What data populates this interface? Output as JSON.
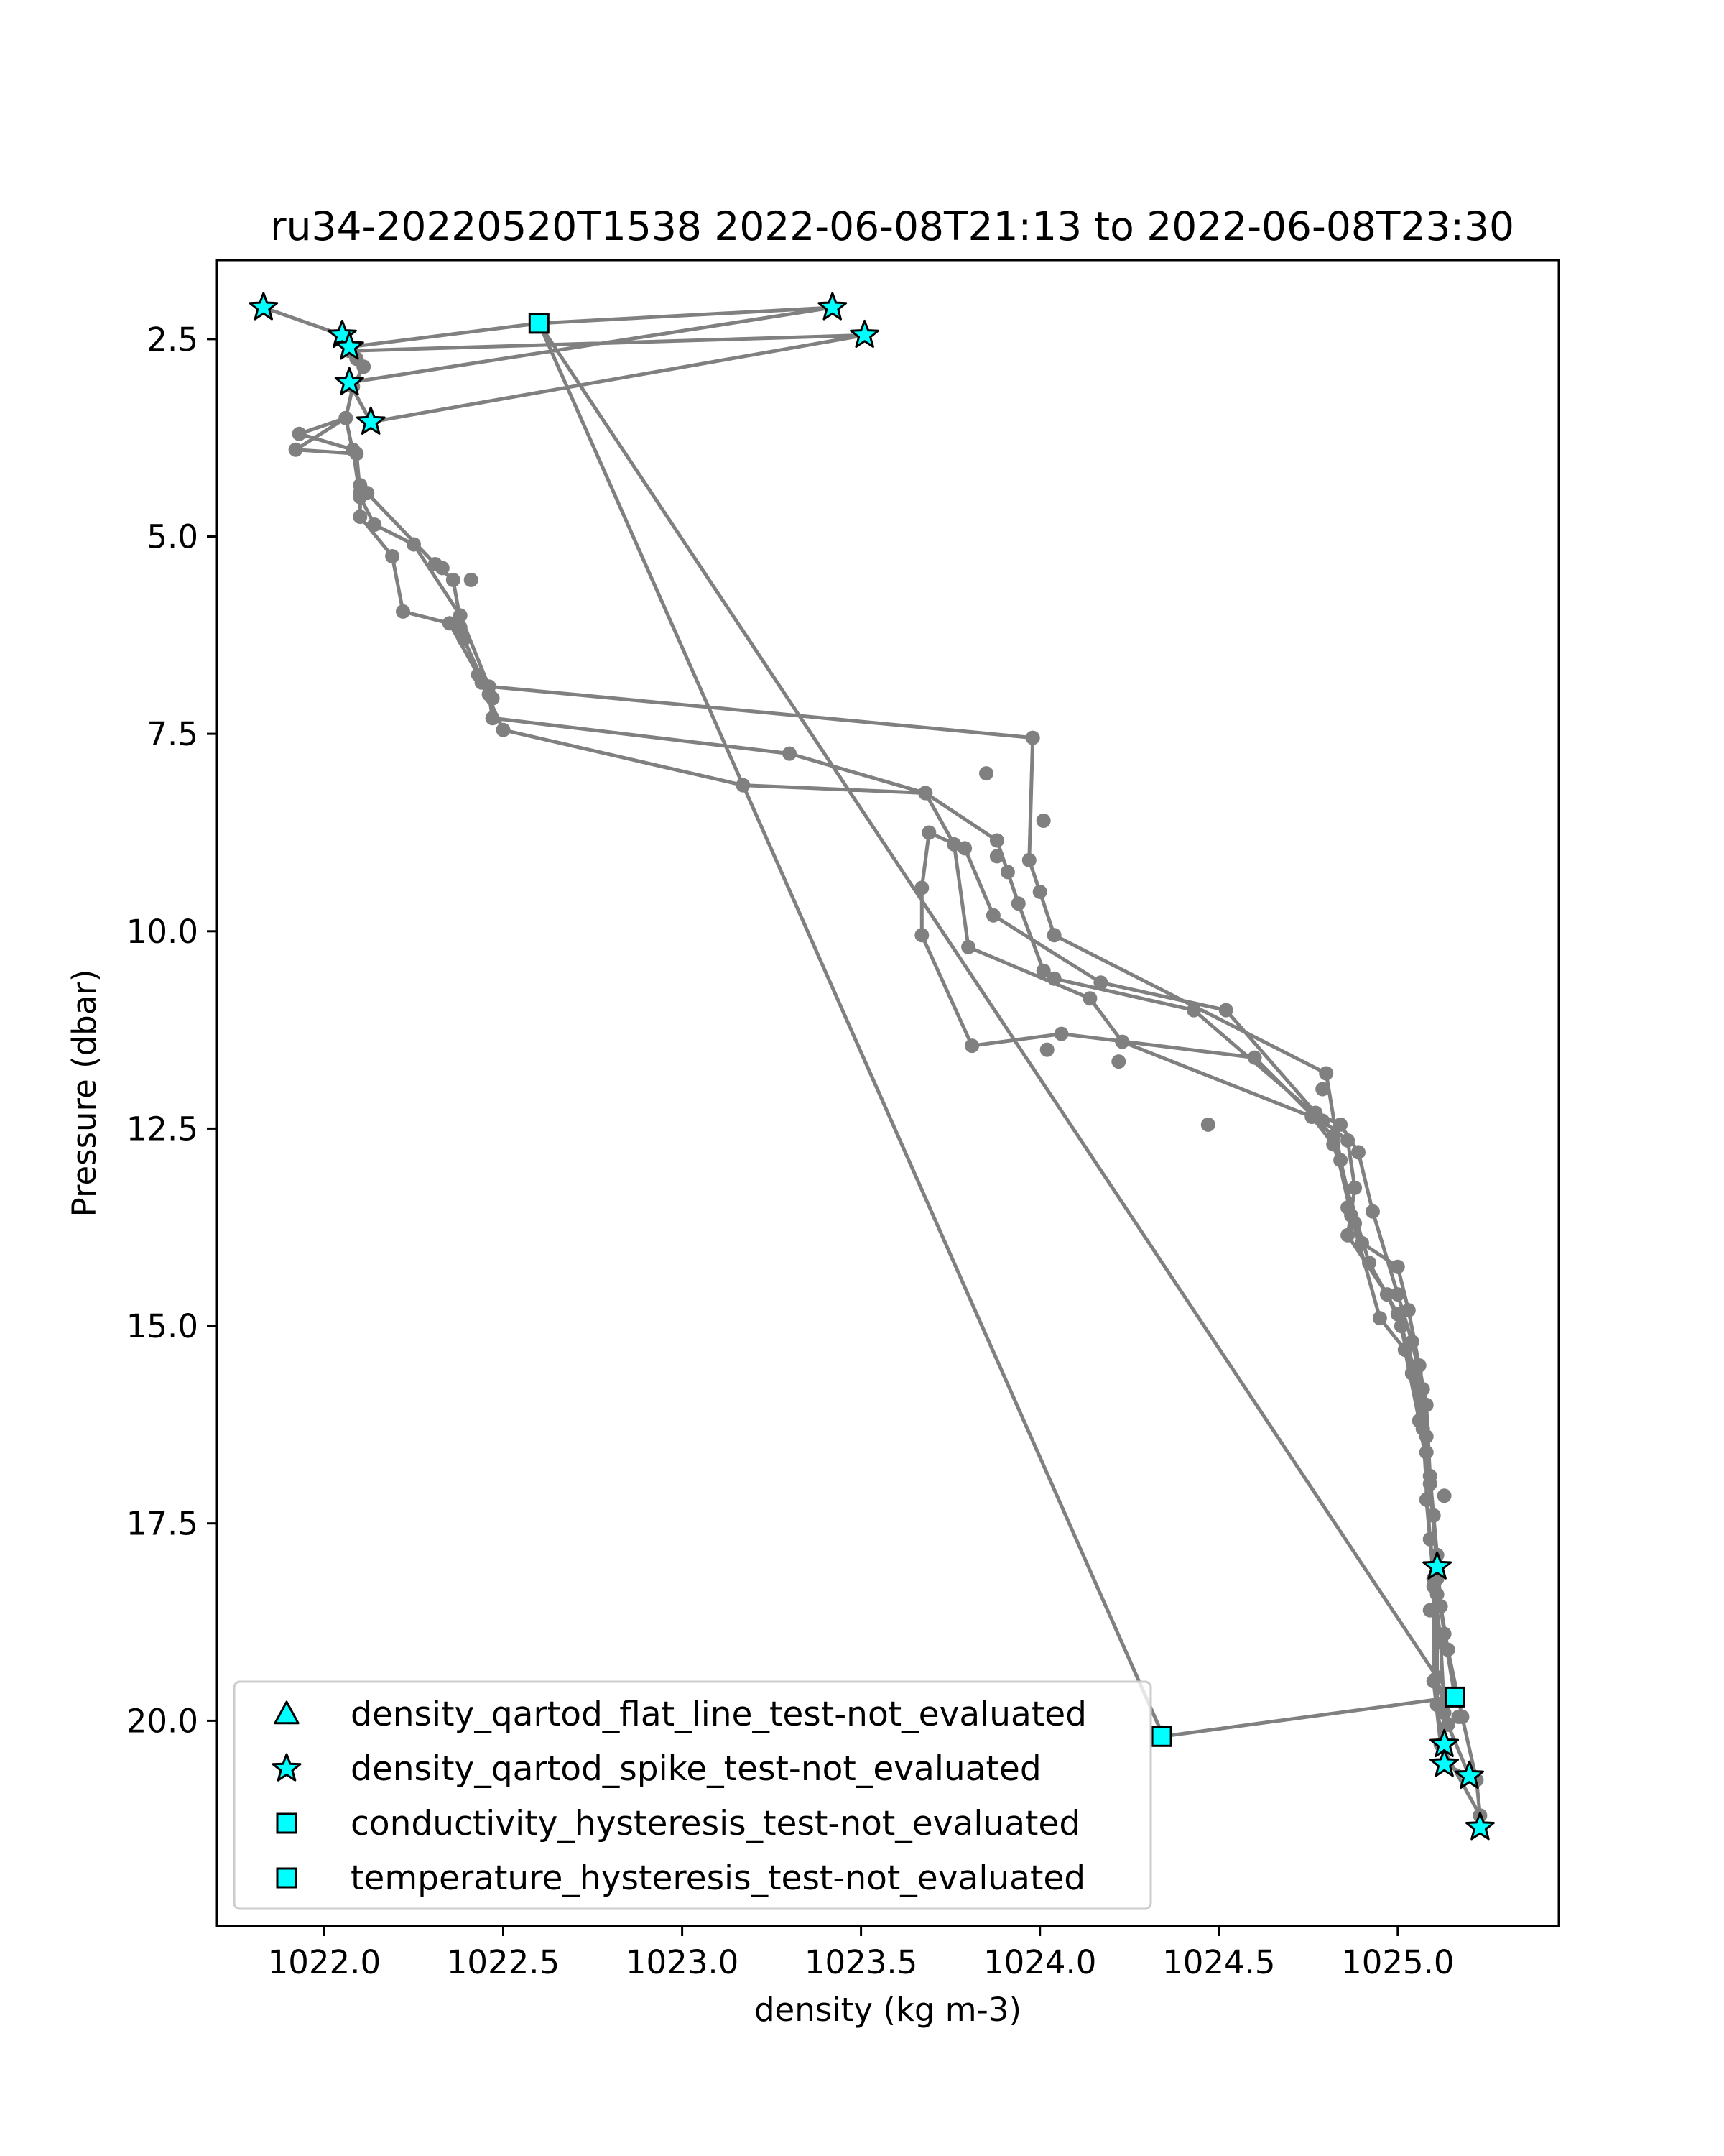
{
  "chart_data": {
    "type": "scatter",
    "title": "ru34-20220520T1538 2022-06-08T21:13 to 2022-06-08T23:30",
    "xlabel": "density (kg m-3)",
    "ylabel": "Pressure (dbar)",
    "xlim": [
      1021.7,
      1025.45
    ],
    "ylim": [
      22.6,
      1.5
    ],
    "y_inverted": true,
    "grid": false,
    "legend_position": "lower-left",
    "x_ticks": [
      1022.0,
      1022.5,
      1023.0,
      1023.5,
      1024.0,
      1024.5,
      1025.0
    ],
    "x_tick_labels": [
      "1022.0",
      "1022.5",
      "1023.0",
      "1023.5",
      "1024.0",
      "1024.5",
      "1025.0"
    ],
    "y_ticks": [
      2.5,
      5.0,
      7.5,
      10.0,
      12.5,
      15.0,
      17.5,
      20.0
    ],
    "y_tick_labels": [
      "2.5",
      "5.0",
      "7.5",
      "10.0",
      "12.5",
      "15.0",
      "17.5",
      "20.0"
    ],
    "colors": {
      "profile_line": "#808080",
      "marker_fill": "#00ffff",
      "marker_edge": "#000000",
      "frame": "#000000"
    },
    "profile": [
      [
        1021.83,
        2.1
      ],
      [
        1022.05,
        2.45
      ],
      [
        1022.07,
        2.6
      ],
      [
        1022.6,
        2.3
      ],
      [
        1023.42,
        2.1
      ],
      [
        1022.07,
        3.05
      ],
      [
        1022.13,
        3.55
      ],
      [
        1023.51,
        2.45
      ],
      [
        1022.07,
        2.65
      ],
      [
        1022.09,
        2.75
      ],
      [
        1022.11,
        2.85
      ],
      [
        1022.08,
        3.1
      ],
      [
        1022.06,
        3.5
      ],
      [
        1021.93,
        3.7
      ],
      [
        1022.08,
        3.9
      ],
      [
        1022.1,
        4.5
      ],
      [
        1022.14,
        4.85
      ],
      [
        1022.25,
        5.1
      ],
      [
        1022.38,
        6.0
      ],
      [
        1022.46,
        6.9
      ],
      [
        1023.98,
        7.55
      ],
      [
        1023.97,
        9.1
      ],
      [
        1024.0,
        9.5
      ],
      [
        1024.04,
        10.05
      ],
      [
        1024.8,
        11.8
      ],
      [
        1024.84,
        12.9
      ],
      [
        1024.88,
        13.7
      ],
      [
        1024.9,
        13.95
      ],
      [
        1025.0,
        14.25
      ],
      [
        1025.03,
        14.8
      ],
      [
        1025.06,
        15.5
      ],
      [
        1025.08,
        16.0
      ],
      [
        1025.09,
        16.9
      ],
      [
        1025.11,
        17.9
      ],
      [
        1025.12,
        18.55
      ],
      [
        1025.14,
        19.1
      ],
      [
        1025.18,
        19.95
      ],
      [
        1025.22,
        20.75
      ],
      [
        1025.23,
        21.2
      ],
      [
        1025.12,
        20.3
      ],
      [
        1025.1,
        19.5
      ],
      [
        1025.1,
        18.3
      ],
      [
        1025.11,
        18.05
      ],
      [
        1025.09,
        17.0
      ],
      [
        1025.06,
        16.2
      ],
      [
        1025.02,
        15.3
      ],
      [
        1024.95,
        14.9
      ],
      [
        1024.87,
        13.6
      ],
      [
        1024.82,
        12.6
      ],
      [
        1024.6,
        11.6
      ],
      [
        1024.06,
        11.3
      ],
      [
        1023.81,
        11.45
      ],
      [
        1023.67,
        10.05
      ],
      [
        1023.67,
        9.45
      ],
      [
        1023.69,
        8.75
      ],
      [
        1023.79,
        8.95
      ],
      [
        1023.87,
        9.8
      ],
      [
        1024.17,
        10.65
      ],
      [
        1024.52,
        11.0
      ],
      [
        1024.77,
        12.3
      ],
      [
        1024.84,
        12.45
      ],
      [
        1024.89,
        12.8
      ],
      [
        1024.93,
        13.55
      ],
      [
        1025.0,
        14.6
      ],
      [
        1025.04,
        15.2
      ],
      [
        1025.07,
        15.8
      ],
      [
        1025.08,
        16.6
      ],
      [
        1025.1,
        17.4
      ],
      [
        1025.11,
        18.2
      ],
      [
        1025.13,
        18.9
      ],
      [
        1025.16,
        19.7
      ],
      [
        1024.34,
        20.2
      ],
      [
        1024.34,
        20.15
      ],
      [
        1022.6,
        2.3
      ],
      [
        1025.11,
        19.45
      ],
      [
        1025.14,
        20.05
      ],
      [
        1025.2,
        20.7
      ],
      [
        1025.13,
        20.55
      ],
      [
        1025.11,
        19.8
      ],
      [
        1025.11,
        18.4
      ],
      [
        1025.09,
        17.7
      ],
      [
        1025.07,
        16.3
      ],
      [
        1025.04,
        15.6
      ],
      [
        1025.0,
        14.85
      ],
      [
        1024.92,
        14.2
      ],
      [
        1024.82,
        12.7
      ],
      [
        1024.76,
        12.35
      ],
      [
        1024.23,
        11.4
      ],
      [
        1024.14,
        10.85
      ],
      [
        1023.8,
        10.2
      ],
      [
        1023.76,
        8.9
      ],
      [
        1023.68,
        8.25
      ],
      [
        1023.3,
        7.75
      ],
      [
        1022.47,
        7.3
      ],
      [
        1022.46,
        7.0
      ],
      [
        1022.39,
        6.3
      ],
      [
        1022.36,
        5.55
      ],
      [
        1022.31,
        5.35
      ],
      [
        1022.12,
        4.45
      ],
      [
        1022.1,
        4.35
      ],
      [
        1022.06,
        3.5
      ],
      [
        1021.92,
        3.9
      ],
      [
        1022.09,
        3.95
      ],
      [
        1022.1,
        4.45
      ],
      [
        1022.1,
        4.75
      ],
      [
        1022.19,
        5.25
      ],
      [
        1022.22,
        5.95
      ],
      [
        1022.35,
        6.1
      ],
      [
        1022.43,
        6.75
      ],
      [
        1022.5,
        7.45
      ],
      [
        1023.17,
        8.15
      ],
      [
        1023.68,
        8.25
      ],
      [
        1023.88,
        8.85
      ],
      [
        1023.91,
        9.25
      ],
      [
        1023.94,
        9.65
      ],
      [
        1024.01,
        10.5
      ],
      [
        1024.04,
        10.6
      ],
      [
        1024.43,
        11.0
      ],
      [
        1024.79,
        12.4
      ],
      [
        1024.86,
        12.65
      ],
      [
        1024.88,
        13.25
      ],
      [
        1024.86,
        13.85
      ],
      [
        1024.97,
        14.6
      ],
      [
        1025.01,
        15.0
      ],
      [
        1025.05,
        15.6
      ],
      [
        1025.08,
        16.4
      ],
      [
        1025.08,
        17.2
      ],
      [
        1025.1,
        18.2
      ],
      [
        1025.12,
        19.0
      ],
      [
        1025.13,
        19.9
      ],
      [
        1025.13,
        20.55
      ]
    ],
    "extra_points": [
      [
        1022.33,
        5.4
      ],
      [
        1022.41,
        5.55
      ],
      [
        1022.38,
        6.15
      ],
      [
        1022.44,
        6.85
      ],
      [
        1022.47,
        7.05
      ],
      [
        1024.01,
        8.6
      ],
      [
        1023.85,
        8.0
      ],
      [
        1023.88,
        9.05
      ],
      [
        1024.02,
        11.5
      ],
      [
        1024.22,
        11.65
      ],
      [
        1024.47,
        12.45
      ],
      [
        1024.79,
        12.0
      ],
      [
        1024.86,
        13.5
      ],
      [
        1025.13,
        17.15
      ],
      [
        1025.09,
        18.6
      ],
      [
        1025.17,
        19.95
      ]
    ],
    "flag_points": {
      "star": [
        [
          1021.83,
          2.1
        ],
        [
          1022.05,
          2.45
        ],
        [
          1022.07,
          2.6
        ],
        [
          1023.42,
          2.1
        ],
        [
          1023.51,
          2.45
        ],
        [
          1022.07,
          3.05
        ],
        [
          1022.13,
          3.55
        ],
        [
          1025.11,
          18.05
        ],
        [
          1025.13,
          20.3
        ],
        [
          1025.13,
          20.55
        ],
        [
          1025.2,
          20.7
        ],
        [
          1025.23,
          21.35
        ]
      ],
      "square": [
        [
          1022.6,
          2.3
        ],
        [
          1024.34,
          20.2
        ],
        [
          1025.16,
          19.7
        ]
      ]
    },
    "legend": [
      {
        "label": "density_qartod_flat_line_test-not_evaluated",
        "marker": "triangle"
      },
      {
        "label": "density_qartod_spike_test-not_evaluated",
        "marker": "star"
      },
      {
        "label": "conductivity_hysteresis_test-not_evaluated",
        "marker": "square"
      },
      {
        "label": "temperature_hysteresis_test-not_evaluated",
        "marker": "square"
      }
    ]
  }
}
